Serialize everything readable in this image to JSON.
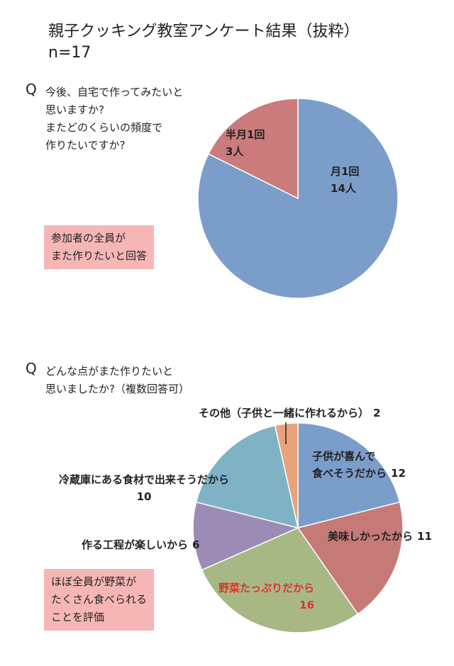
{
  "title": "親子クッキング教室アンケート結果（抜粋）",
  "subtitle": "n=17",
  "chart_data": [
    {
      "type": "pie",
      "marker": "Q",
      "question": [
        "今後、自宅で作ってみたいと",
        "思いますか?",
        "またどのくらいの頻度で",
        "作りたいですか?"
      ],
      "categories": [
        "月1回",
        "半月1回"
      ],
      "values": [
        14,
        3
      ],
      "value_labels": [
        "14人",
        "3人"
      ],
      "colors": [
        "#7b9dc9",
        "#cb7b7b"
      ],
      "note": [
        "参加者の全員が",
        "また作りたいと回答"
      ]
    },
    {
      "type": "pie",
      "marker": "Q",
      "question": [
        "どんな点がまた作りたいと",
        "思いましたか?（複数回答可）"
      ],
      "categories": [
        "子供が喜んで\n食べそうだから",
        "美味しかったから",
        "野菜たっぷりだから",
        "作る工程が楽しいから",
        "冷蔵庫にある食材で出来そうだから",
        "その他（子供と一緒に作れるから）"
      ],
      "values": [
        12,
        11,
        16,
        6,
        10,
        2
      ],
      "colors": [
        "#7b9dc9",
        "#c57a78",
        "#a8b884",
        "#9c8bb5",
        "#80b2c6",
        "#e8a27c"
      ],
      "note": [
        "ほぼ全員が野菜が",
        "たくさん食べられる",
        "ことを評価"
      ]
    }
  ]
}
